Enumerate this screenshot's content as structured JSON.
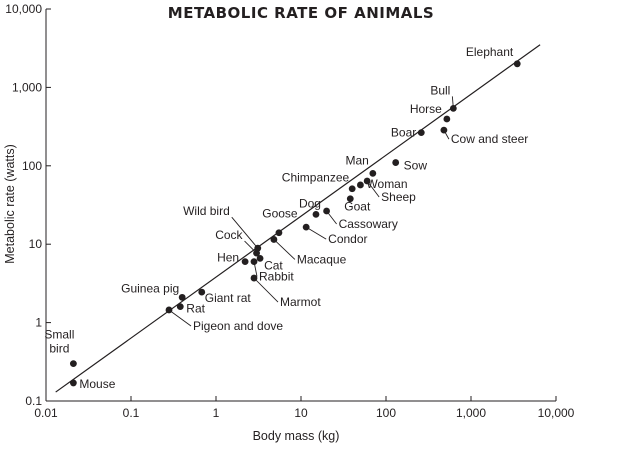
{
  "chart_data": {
    "type": "scatter",
    "title": "METABOLIC RATE OF ANIMALS",
    "xlabel": "Body mass (kg)",
    "ylabel": "Metabolic rate (watts)",
    "xscale": "log",
    "yscale": "log",
    "xlim": [
      0.01,
      10000
    ],
    "ylim": [
      0.1,
      10000
    ],
    "xticks": [
      {
        "value": 0.01,
        "label": "0.01"
      },
      {
        "value": 0.1,
        "label": "0.1"
      },
      {
        "value": 1,
        "label": "1"
      },
      {
        "value": 10,
        "label": "10"
      },
      {
        "value": 100,
        "label": "100"
      },
      {
        "value": 1000,
        "label": "1,000"
      },
      {
        "value": 10000,
        "label": "10,000"
      }
    ],
    "yticks": [
      {
        "value": 0.1,
        "label": "0.1"
      },
      {
        "value": 1,
        "label": "1"
      },
      {
        "value": 10,
        "label": "10"
      },
      {
        "value": 100,
        "label": "100"
      },
      {
        "value": 1000,
        "label": "1,000"
      },
      {
        "value": 10000,
        "label": "10,000"
      }
    ],
    "grid": false,
    "trend_line": {
      "x": [
        0.013,
        6500
      ],
      "y": [
        0.13,
        3500
      ]
    },
    "points": [
      {
        "label": "Mouse",
        "x": 0.021,
        "y": 0.17
      },
      {
        "label": "Small bird",
        "x": 0.021,
        "y": 0.3
      },
      {
        "label": "Pigeon and dove",
        "x": 0.28,
        "y": 1.45
      },
      {
        "label": "Rat",
        "x": 0.38,
        "y": 1.6
      },
      {
        "label": "Guinea pig",
        "x": 0.4,
        "y": 2.1
      },
      {
        "label": "Giant rat",
        "x": 0.68,
        "y": 2.45
      },
      {
        "label": "Hen",
        "x": 2.2,
        "y": 6.0
      },
      {
        "label": "Marmot",
        "x": 2.8,
        "y": 3.7
      },
      {
        "label": "Rabbit",
        "x": 2.8,
        "y": 6.0
      },
      {
        "label": "Cock",
        "x": 3.0,
        "y": 7.7
      },
      {
        "label": "Wild bird",
        "x": 3.1,
        "y": 8.9
      },
      {
        "label": "Cat",
        "x": 3.3,
        "y": 6.6
      },
      {
        "label": "Macaque",
        "x": 4.8,
        "y": 11.5
      },
      {
        "label": "Goose",
        "x": 5.5,
        "y": 14.0
      },
      {
        "label": "Condor",
        "x": 11.5,
        "y": 16.5
      },
      {
        "label": "Dog",
        "x": 15,
        "y": 24
      },
      {
        "label": "Cassowary",
        "x": 20,
        "y": 26.5
      },
      {
        "label": "Goat",
        "x": 38,
        "y": 38
      },
      {
        "label": "Chimpanzee",
        "x": 40,
        "y": 51
      },
      {
        "label": "Woman",
        "x": 50,
        "y": 57
      },
      {
        "label": "Sheep",
        "x": 60,
        "y": 64
      },
      {
        "label": "Man",
        "x": 70,
        "y": 80
      },
      {
        "label": "Sow",
        "x": 130,
        "y": 110
      },
      {
        "label": "Boar",
        "x": 260,
        "y": 265
      },
      {
        "label": "Cow and steer",
        "x": 480,
        "y": 285
      },
      {
        "label": "Horse",
        "x": 520,
        "y": 395
      },
      {
        "label": "Bull",
        "x": 620,
        "y": 540
      },
      {
        "label": "Elephant",
        "x": 3500,
        "y": 2000
      }
    ]
  }
}
